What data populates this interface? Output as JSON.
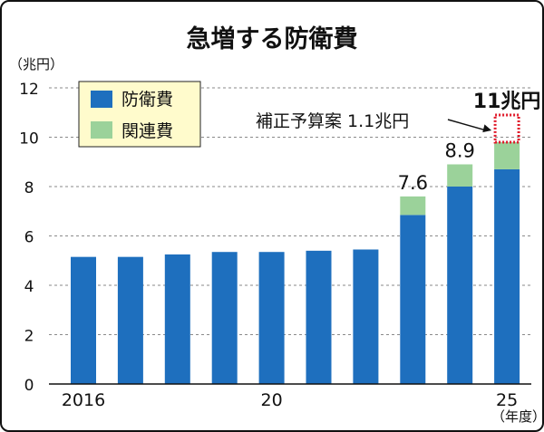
{
  "chart_data": {
    "type": "bar",
    "title": "急増する防衛費",
    "y_unit_label": "（兆円）",
    "x_unit_label": "（年度）",
    "ylim": [
      0,
      12
    ],
    "yticks": [
      0,
      2,
      4,
      6,
      8,
      10,
      12
    ],
    "grid": true,
    "legend_position": "top-left",
    "categories": [
      2016,
      2017,
      2018,
      2019,
      2020,
      2021,
      2022,
      2023,
      2024,
      2025
    ],
    "x_tick_labels": [
      {
        "category": 2016,
        "label": "2016"
      },
      {
        "category": 2020,
        "label": "20"
      },
      {
        "category": 2025,
        "label": "25"
      }
    ],
    "series": [
      {
        "name": "防衛費",
        "color": "#1e6fbe",
        "values": [
          5.15,
          5.15,
          5.25,
          5.35,
          5.35,
          5.4,
          5.45,
          6.85,
          8.0,
          8.7
        ]
      },
      {
        "name": "関連費",
        "color": "#9bd29a",
        "values": [
          0,
          0,
          0,
          0,
          0,
          0,
          0,
          0.75,
          0.9,
          1.1
        ]
      }
    ],
    "planned": {
      "category": 2025,
      "value": 1.1,
      "color": "#e0192a",
      "style": "dotted"
    },
    "data_labels": [
      {
        "category": 2023,
        "text": "7.6"
      },
      {
        "category": 2024,
        "text": "8.9"
      },
      {
        "category": 2025,
        "text": "11兆円"
      }
    ],
    "annotation": {
      "text": "補正予算案 1.1兆円",
      "target_category": 2025
    }
  }
}
